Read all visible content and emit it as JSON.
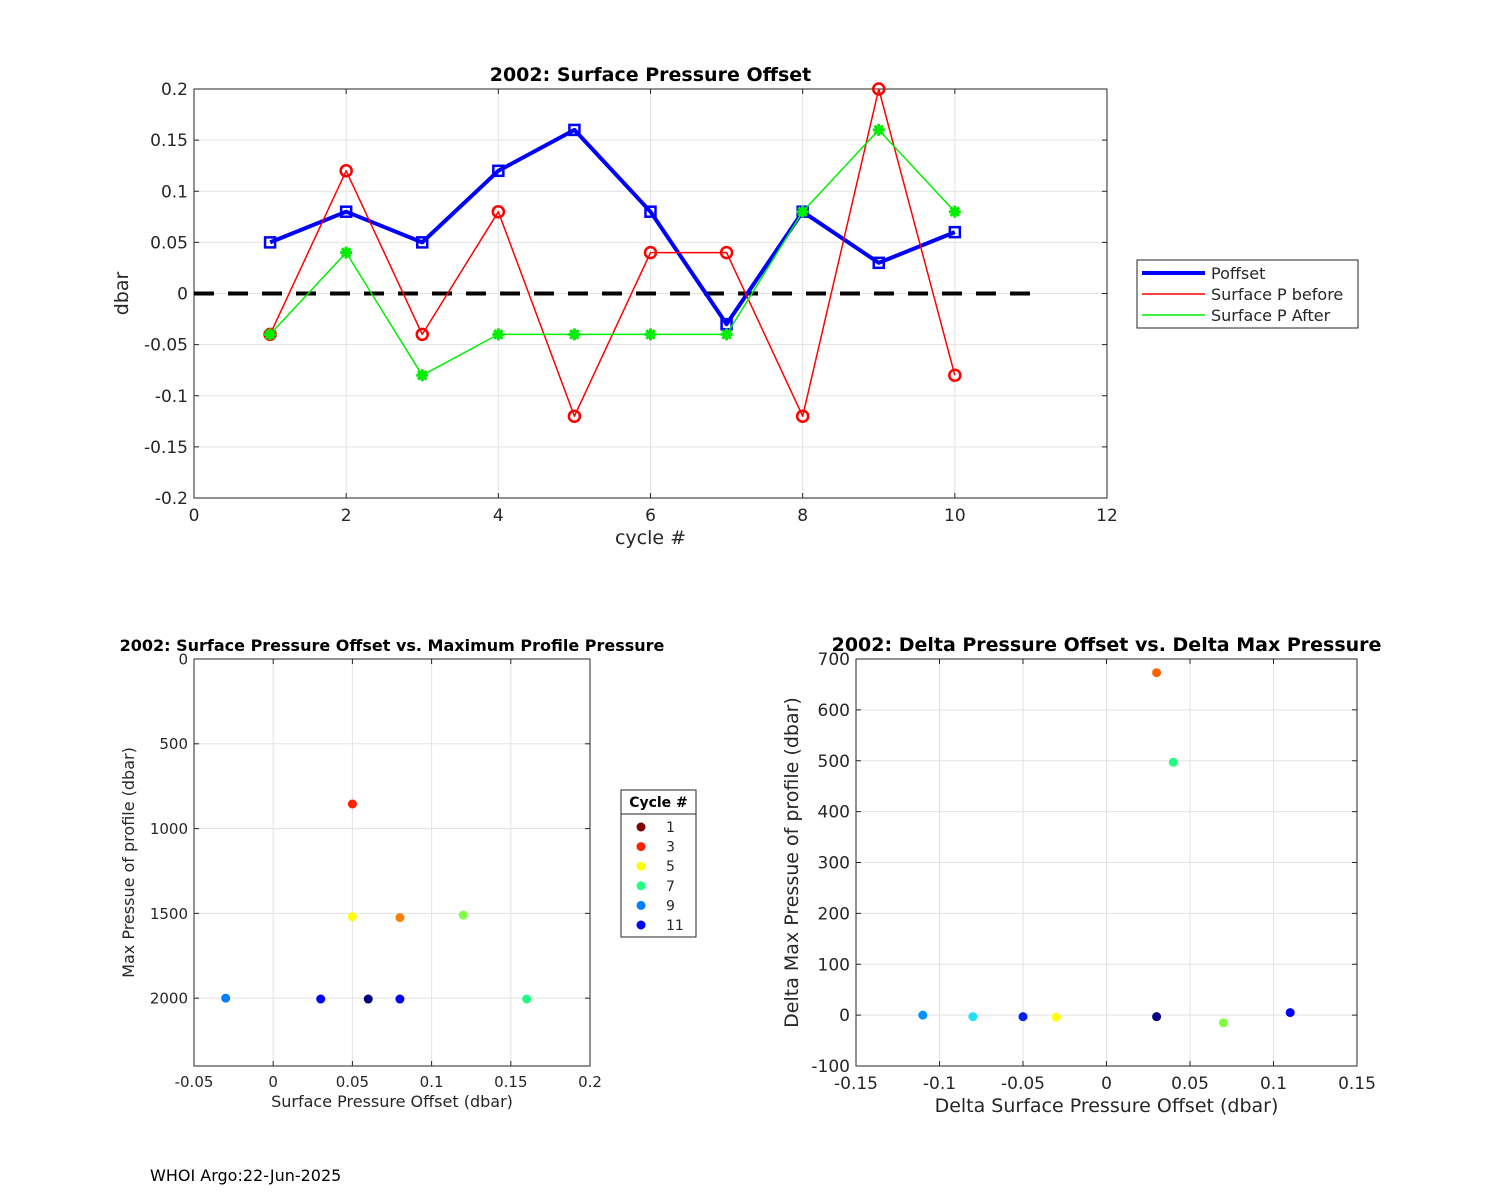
{
  "footer": "WHOI Argo:22-Jun-2025",
  "chart_data": [
    {
      "type": "line",
      "title": "2002: Surface Pressure Offset",
      "xlabel": "cycle #",
      "ylabel": "dbar",
      "xlim": [
        0,
        12
      ],
      "ylim": [
        -0.2,
        0.2
      ],
      "xticks": [
        0,
        2,
        4,
        6,
        8,
        10,
        12
      ],
      "yticks": [
        -0.2,
        -0.15,
        -0.1,
        -0.05,
        0,
        0.05,
        0.1,
        0.15,
        0.2
      ],
      "grid": true,
      "legend_position": "outside-right",
      "x": [
        1,
        2,
        3,
        4,
        5,
        6,
        7,
        8,
        9,
        10
      ],
      "series": [
        {
          "name": "Poffset",
          "color": "#0000ff",
          "marker": "square",
          "values": [
            0.05,
            0.08,
            0.05,
            0.12,
            0.16,
            0.08,
            -0.03,
            0.08,
            0.03,
            0.06
          ]
        },
        {
          "name": "Surface P before",
          "color": "#ff0000",
          "marker": "circle",
          "values": [
            -0.04,
            0.12,
            -0.04,
            0.08,
            -0.12,
            0.04,
            0.04,
            -0.12,
            0.2,
            -0.08
          ]
        },
        {
          "name": "Surface P After",
          "color": "#00ee00",
          "marker": "star",
          "values": [
            -0.04,
            0.04,
            -0.08,
            -0.04,
            -0.04,
            -0.04,
            -0.04,
            0.08,
            0.16,
            0.08
          ]
        }
      ],
      "reference_line": {
        "y": 0,
        "x_range": [
          0,
          11
        ],
        "style": "dashed",
        "color": "#000000"
      }
    },
    {
      "type": "scatter",
      "title": "2002: Surface Pressure Offset vs. Maximum Profile Pressure",
      "xlabel": "Surface Pressure Offset (dbar)",
      "ylabel": "Max Pressue of profile (dbar)",
      "xlim": [
        -0.05,
        0.2
      ],
      "ylim": [
        0,
        2400
      ],
      "y_reversed": true,
      "xticks": [
        -0.05,
        0,
        0.05,
        0.1,
        0.15,
        0.2
      ],
      "xtick_labels": [
        "-0.05",
        "0",
        "0.05",
        "0.1",
        "0.15",
        "0.2"
      ],
      "yticks": [
        0,
        500,
        1000,
        1500,
        2000
      ],
      "grid": true,
      "legend_title": "Cycle #",
      "legend_position": "outside-right",
      "legend": [
        {
          "label": "1",
          "color": "#800000"
        },
        {
          "label": "3",
          "color": "#ff2000"
        },
        {
          "label": "5",
          "color": "#ffff00"
        },
        {
          "label": "7",
          "color": "#20ff80"
        },
        {
          "label": "9",
          "color": "#0080ff"
        },
        {
          "label": "11",
          "color": "#0000ff"
        }
      ],
      "points": [
        {
          "x": 0.06,
          "y": 2005,
          "color": "#000080"
        },
        {
          "x": 0.03,
          "y": 2005,
          "color": "#0000ff"
        },
        {
          "x": 0.05,
          "y": 855,
          "color": "#ff2000"
        },
        {
          "x": 0.05,
          "y": 1520,
          "color": "#ffff00"
        },
        {
          "x": 0.08,
          "y": 1525,
          "color": "#ff8000"
        },
        {
          "x": 0.12,
          "y": 1510,
          "color": "#80ff40"
        },
        {
          "x": 0.16,
          "y": 2005,
          "color": "#20ff80"
        },
        {
          "x": -0.03,
          "y": 2000,
          "color": "#0080ff"
        },
        {
          "x": 0.08,
          "y": 2005,
          "color": "#0000ff"
        }
      ]
    },
    {
      "type": "scatter",
      "title": "2002: Delta Pressure Offset vs. Delta Max Pressure",
      "xlabel": "Delta Surface Pressure Offset (dbar)",
      "ylabel": "Delta Max Pressue of profile (dbar)",
      "xlim": [
        -0.15,
        0.15
      ],
      "ylim": [
        -100,
        700
      ],
      "xticks": [
        -0.15,
        -0.1,
        -0.05,
        0,
        0.05,
        0.1,
        0.15
      ],
      "xtick_labels": [
        "-0.15",
        "-0.1",
        "-0.05",
        "0",
        "0.05",
        "0.1",
        "0.15"
      ],
      "yticks": [
        -100,
        0,
        100,
        200,
        300,
        400,
        500,
        600,
        700
      ],
      "grid": true,
      "points": [
        {
          "x": 0.03,
          "y": -3,
          "color": "#000080"
        },
        {
          "x": -0.05,
          "y": -3,
          "color": "#0020ff"
        },
        {
          "x": 0.03,
          "y": 673,
          "color": "#ff6000"
        },
        {
          "x": -0.03,
          "y": -4,
          "color": "#ffff00"
        },
        {
          "x": 0.04,
          "y": 497,
          "color": "#20ff80"
        },
        {
          "x": 0.07,
          "y": -15,
          "color": "#80ff40"
        },
        {
          "x": -0.11,
          "y": 0,
          "color": "#0090ff"
        },
        {
          "x": -0.08,
          "y": -3,
          "color": "#20e0ff"
        },
        {
          "x": 0.11,
          "y": 5,
          "color": "#0000ff"
        }
      ]
    }
  ]
}
